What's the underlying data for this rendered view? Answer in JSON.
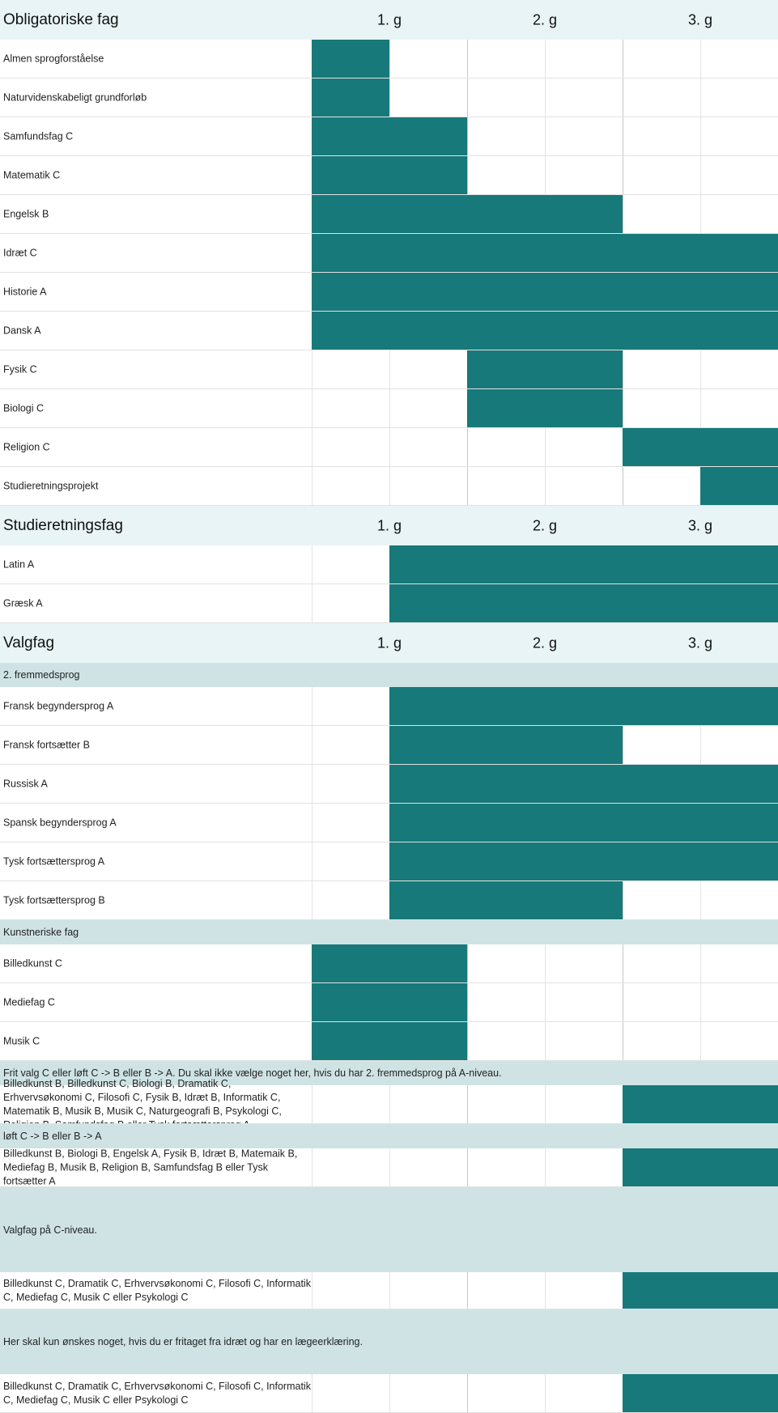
{
  "years": [
    "1. g",
    "2. g",
    "3. g"
  ],
  "colors": {
    "bar": "#17797a",
    "header": "#e8f4f5",
    "subheader": "#cfe3e5"
  },
  "sections": [
    {
      "title": "Obligatoriske fag",
      "rows": [
        {
          "kind": "subject",
          "label": "Almen sprogforståelse",
          "start_half": 0,
          "end_half": 1
        },
        {
          "kind": "subject",
          "label": "Naturvidenskabeligt grundforløb",
          "start_half": 0,
          "end_half": 1
        },
        {
          "kind": "subject",
          "label": "Samfundsfag C",
          "start_half": 0,
          "end_half": 2
        },
        {
          "kind": "subject",
          "label": "Matematik C",
          "start_half": 0,
          "end_half": 2
        },
        {
          "kind": "subject",
          "label": "Engelsk B",
          "start_half": 0,
          "end_half": 4
        },
        {
          "kind": "subject",
          "label": "Idræt C",
          "start_half": 0,
          "end_half": 6
        },
        {
          "kind": "subject",
          "label": "Historie A",
          "start_half": 0,
          "end_half": 6
        },
        {
          "kind": "subject",
          "label": "Dansk A",
          "start_half": 0,
          "end_half": 6
        },
        {
          "kind": "subject",
          "label": "Fysik C",
          "start_half": 2,
          "end_half": 4
        },
        {
          "kind": "subject",
          "label": "Biologi C",
          "start_half": 2,
          "end_half": 4
        },
        {
          "kind": "subject",
          "label": "Religion C",
          "start_half": 4,
          "end_half": 6
        },
        {
          "kind": "subject",
          "label": "Studieretningsprojekt",
          "start_half": 5,
          "end_half": 6
        }
      ]
    },
    {
      "title": "Studieretningsfag",
      "rows": [
        {
          "kind": "subject",
          "label": "Latin A",
          "start_half": 1,
          "end_half": 6
        },
        {
          "kind": "subject",
          "label": "Græsk A",
          "start_half": 1,
          "end_half": 6
        }
      ]
    },
    {
      "title": "Valgfag",
      "rows": [
        {
          "kind": "group",
          "label": "2. fremmedsprog"
        },
        {
          "kind": "subject",
          "label": "Fransk begyndersprog A",
          "start_half": 1,
          "end_half": 6
        },
        {
          "kind": "subject",
          "label": "Fransk fortsætter B",
          "start_half": 1,
          "end_half": 4
        },
        {
          "kind": "subject",
          "label": "Russisk A",
          "start_half": 1,
          "end_half": 6
        },
        {
          "kind": "subject",
          "label": "Spansk begyndersprog A",
          "start_half": 1,
          "end_half": 6
        },
        {
          "kind": "subject",
          "label": "Tysk fortsættersprog A",
          "start_half": 1,
          "end_half": 6
        },
        {
          "kind": "subject",
          "label": "Tysk fortsættersprog B",
          "start_half": 1,
          "end_half": 4
        },
        {
          "kind": "group",
          "label": "Kunstneriske fag"
        },
        {
          "kind": "subject",
          "label": "Billedkunst C",
          "start_half": 0,
          "end_half": 2
        },
        {
          "kind": "subject",
          "label": "Mediefag C",
          "start_half": 0,
          "end_half": 2
        },
        {
          "kind": "subject",
          "label": "Musik C",
          "start_half": 0,
          "end_half": 2
        },
        {
          "kind": "group",
          "label": "Frit valg C eller løft C -> B eller B -> A. Du skal ikke vælge noget her, hvis du har 2. fremmedsprog på A-niveau."
        },
        {
          "kind": "subject",
          "label": "Billedkunst B, Billedkunst C, Biologi B, Dramatik C, Erhvervsøkonomi C, Filosofi C, Fysik B, Idræt B, Informatik C, Matematik B, Musik B, Musik C, Naturgeografi B, Psykologi C, Religion B, Samfundsfag B eller Tysk fortsættersprog A",
          "start_half": 4,
          "end_half": 6
        },
        {
          "kind": "group",
          "label": "løft C -> B eller B -> A"
        },
        {
          "kind": "subject",
          "label": "Billedkunst B, Biologi B, Engelsk A, Fysik B, Idræt B, Matemaik B, Mediefag B, Musik B, Religion B, Samfundsfag B eller Tysk fortsætter A",
          "start_half": 4,
          "end_half": 6
        },
        {
          "kind": "group",
          "label": "Valgfag på C-niveau."
        },
        {
          "kind": "subject",
          "label": "Billedkunst C, Dramatik C, Erhvervsøkonomi C, Filosofi C, Informatik C, Mediefag C, Musik C eller Psykologi C",
          "start_half": 4,
          "end_half": 6
        },
        {
          "kind": "group",
          "label": "Her skal kun ønskes noget, hvis du er fritaget fra idræt og har en lægeerklæring."
        },
        {
          "kind": "subject",
          "label": "Billedkunst C, Dramatik C, Erhvervsøkonomi C, Filosofi C, Informatik C, Mediefag C, Musik C eller Psykologi C",
          "start_half": 4,
          "end_half": 6
        }
      ]
    }
  ]
}
